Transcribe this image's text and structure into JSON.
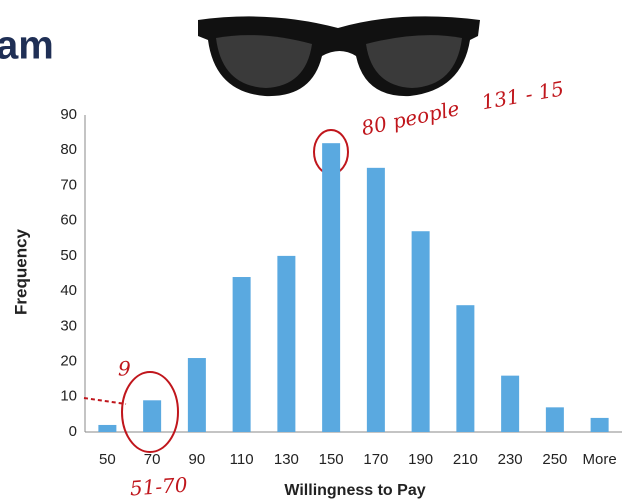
{
  "chart_data": {
    "type": "bar",
    "title": "am",
    "x_label": "Willingness to Pay",
    "y_label": "Frequency",
    "categories": [
      "50",
      "70",
      "90",
      "110",
      "130",
      "150",
      "170",
      "190",
      "210",
      "230",
      "250",
      "More"
    ],
    "values": [
      2,
      9,
      21,
      44,
      50,
      82,
      75,
      57,
      36,
      16,
      7,
      4
    ],
    "color": "#5aa9e0",
    "ylim": [
      0,
      90
    ],
    "yticks": [
      0,
      10,
      20,
      30,
      40,
      50,
      60,
      70,
      80,
      90
    ],
    "grid": false,
    "annotations": [
      "80 people",
      "131 - 15",
      "9",
      "51-70"
    ]
  }
}
